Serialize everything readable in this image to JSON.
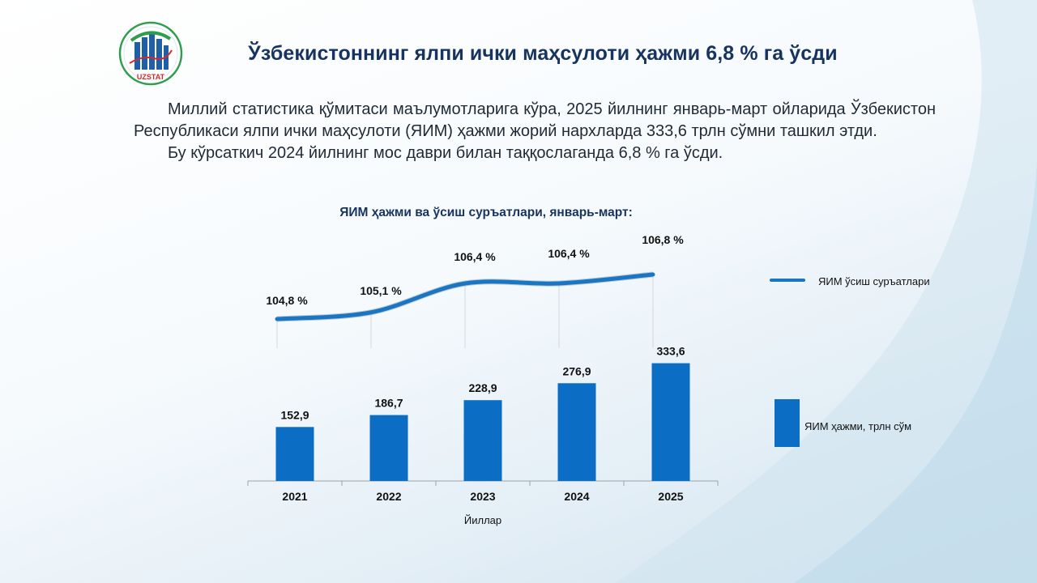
{
  "header": {
    "logo_text": "UZSTAT",
    "title": "Ўзбекистоннинг ялпи ички маҳсулоти ҳажми 6,8 % га ўсди"
  },
  "body": {
    "paragraph1": "Миллий статистика қўмитаси маълумотларига кўра, 2025 йилнинг январь-март ойларида Ўзбекистон Республикаси ялпи ички маҳсулоти (ЯИМ) ҳажми жорий нархларда 333,6 трлн сўмни ташкил этди.",
    "paragraph2": "Бу кўрсаткич 2024 йилнинг мос даври билан таққослаганда 6,8 % га ўсди."
  },
  "chart_data": {
    "type": "bar",
    "title": "ЯИМ ҳажми ва ўсиш суръатлари, январь-март:",
    "xlabel": "Йиллар",
    "ylabel": "",
    "categories": [
      "2021",
      "2022",
      "2023",
      "2024",
      "2025"
    ],
    "series": [
      {
        "name": "ЯИМ ҳажми, трлн сўм",
        "type": "bar",
        "values": [
          152.9,
          186.7,
          228.9,
          276.9,
          333.6
        ],
        "labels": [
          "152,9",
          "186,7",
          "228,9",
          "276,9",
          "333,6"
        ],
        "color": "#0b6ec4"
      },
      {
        "name": "ЯИМ ўсиш суръатлари",
        "type": "line",
        "values": [
          104.8,
          105.1,
          106.4,
          106.4,
          106.8
        ],
        "labels": [
          "104,8 %",
          "105,1 %",
          "106,4 %",
          "106,4 %",
          "106,8 %"
        ],
        "color": "#1b76c2"
      }
    ],
    "grid": false,
    "legend_position": "right"
  },
  "colors": {
    "title": "#17335f",
    "bar": "#0b6ec4",
    "line": "#1b76c2",
    "logo_green": "#2e9e4e",
    "logo_red": "#d42a2a"
  }
}
